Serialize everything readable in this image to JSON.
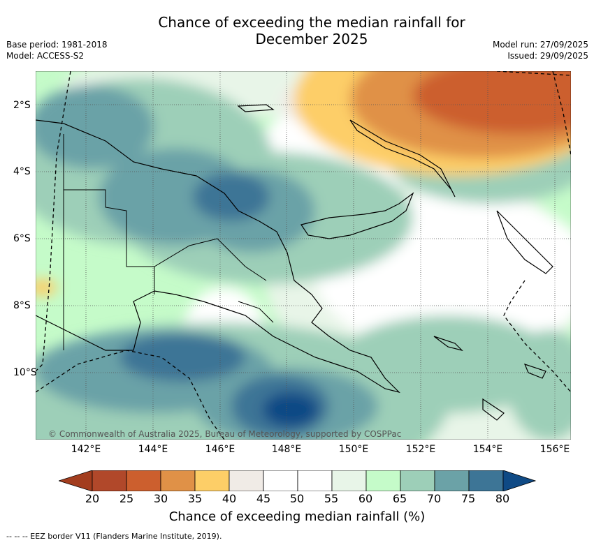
{
  "header": {
    "title_line1": "Chance of exceeding the median rainfall for",
    "title_line2": "December 2025",
    "base_period": "Base period: 1981-2018",
    "model": "Model: ACCESS-S2",
    "model_run": "Model run: 27/09/2025",
    "issued": "Issued: 29/09/2025"
  },
  "map": {
    "copyright": "© Commonwealth of Australia 2025, Bureau of Meteorology, supported by COSPPac",
    "lon_labels": [
      "142°E",
      "144°E",
      "146°E",
      "148°E",
      "150°E",
      "152°E",
      "154°E",
      "156°E"
    ],
    "lat_labels": [
      "2°S",
      "4°S",
      "6°S",
      "8°S",
      "10°S"
    ]
  },
  "colorbar": {
    "ticks": [
      "20",
      "25",
      "30",
      "35",
      "40",
      "45",
      "50",
      "55",
      "60",
      "65",
      "70",
      "75",
      "80"
    ],
    "colors": [
      "#a33d1e",
      "#b1482a",
      "#cc5f2e",
      "#e09147",
      "#fdce67",
      "#f0ebe6",
      "#ffffff",
      "#ffffff",
      "#e8f5e8",
      "#c5fbc9",
      "#9dcfb8",
      "#6ba2a7",
      "#3d7596",
      "#0f4a85"
    ],
    "title": "Chance of exceeding median rainfall (%)"
  },
  "footer": {
    "eez_note": "-- -- -- EEZ border V11 (Flanders Marine Institute, 2019)."
  }
}
